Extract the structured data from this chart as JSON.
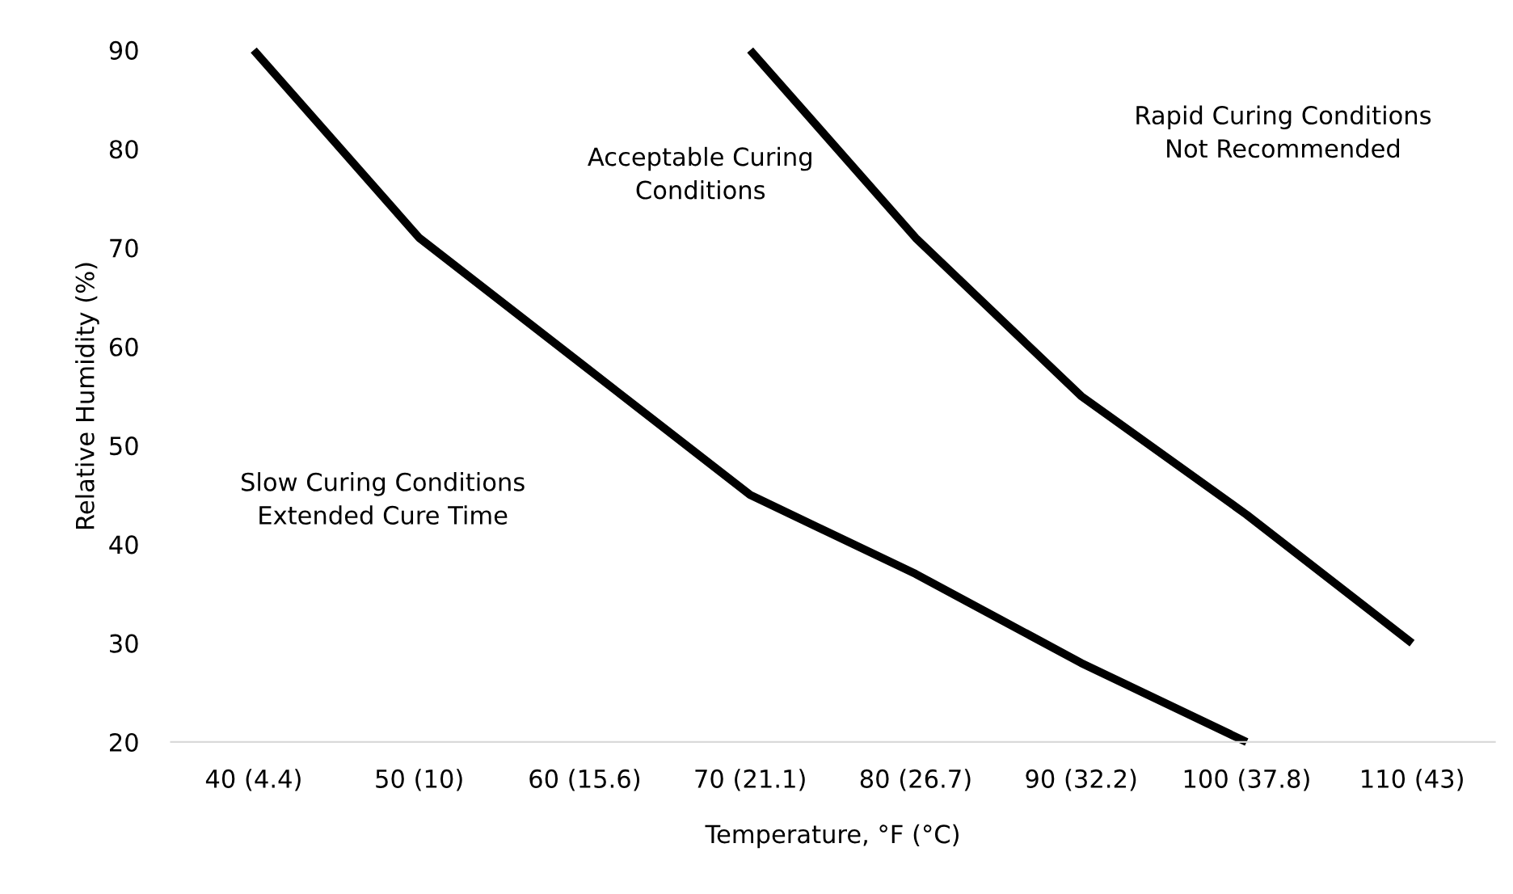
{
  "chart_data": {
    "type": "line",
    "xlabel": "Temperature, °F (°C)",
    "ylabel": "Relative Humidity (%)",
    "categories": [
      "40 (4.4)",
      "50 (10)",
      "60 (15.6)",
      "70 (21.1)",
      "80 (26.7)",
      "90 (32.2)",
      "100 (37.8)",
      "110 (43)"
    ],
    "series": [
      {
        "color": "#000000",
        "values": [
          90,
          71,
          58,
          45,
          37,
          28,
          20,
          null
        ]
      },
      {
        "color": "#000000",
        "values": [
          null,
          null,
          null,
          90,
          71,
          55,
          43,
          30
        ]
      }
    ],
    "ylim": [
      20,
      90
    ],
    "yticks": [
      20,
      30,
      40,
      50,
      60,
      70,
      80,
      90
    ],
    "grid": false,
    "legend": false,
    "marker": "none",
    "line_style": "solid",
    "annotations": [
      "Acceptable Curing\nConditions",
      "Rapid Curing Conditions\nNot Recommended",
      "Slow Curing Conditions\nExtended Cure Time"
    ]
  }
}
